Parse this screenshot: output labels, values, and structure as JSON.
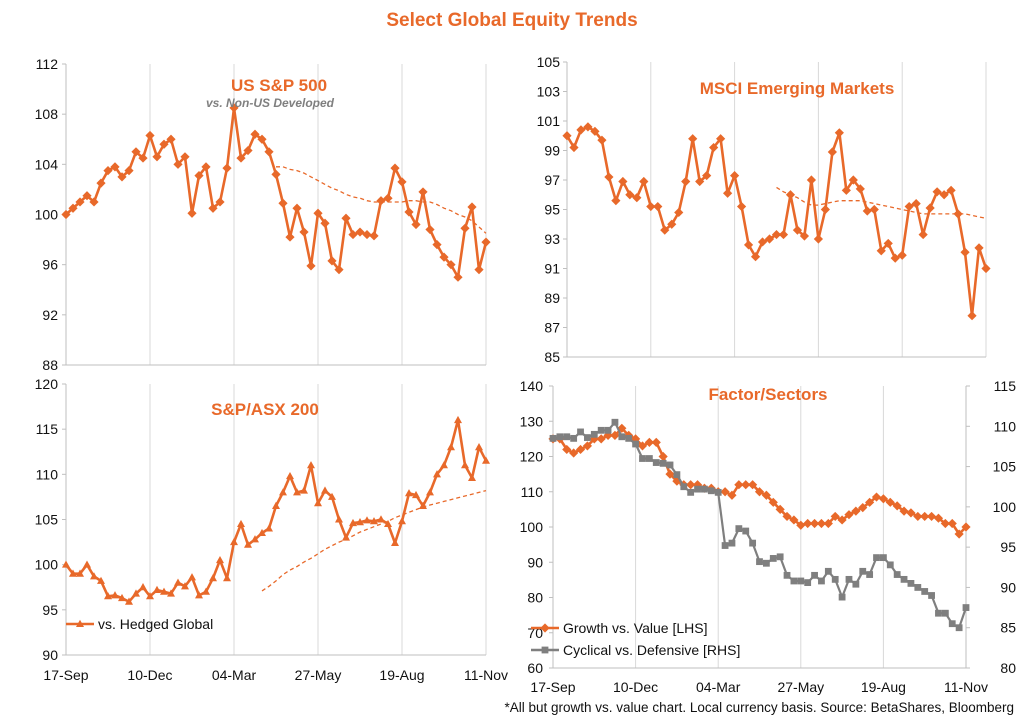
{
  "page": {
    "title": "Select Global Equity Trends",
    "footnote": "*All but growth vs. value chart.  Local currency basis.  Source: BetaShares, Bloomberg"
  },
  "colors": {
    "orange": "#E8692A",
    "gray": "#7F7F7F",
    "text": "#111111",
    "grid": "#d9d9d9"
  },
  "chart_data": [
    {
      "id": "us-sp500",
      "type": "line",
      "title": "US S&P 500",
      "subtitle": "vs. Non-US Developed",
      "x_tick_labels": [],
      "y_tick_labels": [
        "112",
        "108",
        "104",
        "100",
        "96",
        "92",
        "88"
      ],
      "ylim": [
        88,
        112
      ],
      "grid": "vertical",
      "series": [
        {
          "name": "",
          "marker": "diamond",
          "style": "solid",
          "values": [
            100,
            100.5,
            101,
            101.5,
            101,
            102.5,
            103.5,
            103.8,
            103,
            103.5,
            105,
            104.5,
            106.3,
            104.6,
            105.6,
            106,
            104,
            104.6,
            100.1,
            103.1,
            103.8,
            100.5,
            101,
            103.7,
            108.5,
            104.5,
            105.1,
            106.4,
            106,
            105,
            103.2,
            100.9,
            98.2,
            100.5,
            98.6,
            95.9,
            100.1,
            99.3,
            96.3,
            95.6,
            99.7,
            98.4,
            98.6,
            98.4,
            98.3,
            101.1,
            101.3,
            103.7,
            102.6,
            100.2,
            99.2,
            101.8,
            98.8,
            97.6,
            96.6,
            96,
            95,
            98.9,
            100.6,
            95.6,
            97.8
          ]
        },
        {
          "name": "",
          "marker": "none",
          "style": "dashed",
          "values": [
            null,
            null,
            null,
            null,
            null,
            null,
            null,
            null,
            null,
            null,
            null,
            null,
            null,
            null,
            null,
            null,
            null,
            null,
            null,
            null,
            null,
            null,
            null,
            null,
            null,
            null,
            null,
            null,
            null,
            null,
            103.8,
            103.8,
            103.6,
            103.5,
            103.3,
            103,
            102.7,
            102.4,
            102.1,
            101.9,
            101.6,
            101.4,
            101.3,
            101.1,
            101,
            101,
            101,
            101,
            101,
            101.1,
            101.1,
            101,
            101,
            100.8,
            100.5,
            100.3,
            100,
            99.8,
            99.5,
            99,
            98.5
          ]
        }
      ]
    },
    {
      "id": "msci-em",
      "type": "line",
      "title": "MSCI Emerging Markets",
      "x_tick_labels": [],
      "y_tick_labels": [
        "105",
        "103",
        "101",
        "99",
        "97",
        "95",
        "93",
        "91",
        "89",
        "87",
        "85"
      ],
      "ylim": [
        85,
        105
      ],
      "grid": "vertical",
      "series": [
        {
          "name": "",
          "marker": "diamond",
          "style": "solid",
          "values": [
            100,
            99.2,
            100.4,
            100.6,
            100.3,
            99.7,
            97.2,
            95.6,
            96.9,
            96,
            95.8,
            96.9,
            95.2,
            95.2,
            93.6,
            94,
            94.8,
            96.9,
            99.8,
            96.9,
            97.3,
            99.2,
            99.8,
            96.1,
            97.3,
            95.2,
            92.6,
            91.8,
            92.8,
            93,
            93.3,
            93.3,
            96,
            93.6,
            93.2,
            97,
            93,
            95,
            98.9,
            100.2,
            96.3,
            97,
            96.4,
            94.9,
            95,
            92.2,
            92.7,
            91.7,
            91.9,
            95.2,
            95.4,
            93.3,
            95.1,
            96.2,
            96,
            96.3,
            94.7,
            92.1,
            87.8,
            92.4,
            91
          ]
        },
        {
          "name": "",
          "marker": "none",
          "style": "dashed",
          "values": [
            null,
            null,
            null,
            null,
            null,
            null,
            null,
            null,
            null,
            null,
            null,
            null,
            null,
            null,
            null,
            null,
            null,
            null,
            null,
            null,
            null,
            null,
            null,
            null,
            null,
            null,
            null,
            null,
            null,
            null,
            96.5,
            96.2,
            96,
            95.8,
            95.5,
            95.3,
            95.3,
            95.4,
            95.5,
            95.6,
            95.6,
            95.6,
            95.6,
            95.5,
            95.4,
            95.3,
            95.2,
            95.1,
            95,
            94.9,
            94.8,
            94.7,
            94.7,
            94.7,
            94.7,
            94.7,
            94.7,
            94.7,
            94.6,
            94.5,
            94.4
          ]
        }
      ]
    },
    {
      "id": "sp-asx200",
      "type": "line",
      "title": "S&P/ASX 200",
      "x_tick_labels": [
        "17-Sep",
        "10-Dec",
        "04-Mar",
        "27-May",
        "19-Aug",
        "11-Nov"
      ],
      "x_tick_index": [
        0,
        12,
        24,
        36,
        48,
        60
      ],
      "y_tick_labels": [
        "120",
        "115",
        "110",
        "105",
        "100",
        "95",
        "90"
      ],
      "ylim": [
        90,
        120
      ],
      "grid": "vertical",
      "legend": "bottom-left",
      "series": [
        {
          "name": "vs. Hedged Global",
          "marker": "triangle",
          "style": "solid",
          "values": [
            100,
            99,
            99,
            100,
            98.7,
            98.2,
            96.5,
            96.6,
            96.3,
            95.9,
            96.8,
            97.5,
            96.5,
            97.2,
            97,
            96.8,
            98,
            97.6,
            98.6,
            96.6,
            97,
            98.5,
            100.5,
            98.5,
            102.5,
            104.5,
            102.2,
            102.8,
            103.5,
            104,
            106.5,
            108,
            109.8,
            108,
            108.2,
            111,
            106.8,
            108.2,
            107.5,
            105,
            103,
            104.6,
            104.7,
            104.9,
            104.8,
            105,
            104.5,
            102.4,
            104.8,
            107.9,
            107.7,
            106.5,
            108,
            110,
            111,
            113,
            116,
            111,
            109.6,
            113,
            111.5
          ]
        },
        {
          "name": "",
          "marker": "none",
          "style": "dashed",
          "values": [
            null,
            null,
            null,
            null,
            null,
            null,
            null,
            null,
            null,
            null,
            null,
            null,
            null,
            null,
            null,
            null,
            null,
            null,
            null,
            null,
            null,
            null,
            null,
            null,
            null,
            null,
            null,
            null,
            97.1,
            97.6,
            98.2,
            98.9,
            99.4,
            99.8,
            100.3,
            100.7,
            101.2,
            101.7,
            102.1,
            102.5,
            102.8,
            103.2,
            103.6,
            103.9,
            104.2,
            104.5,
            104.8,
            105.2,
            105.5,
            105.8,
            106.1,
            106.4,
            106.6,
            106.8,
            107,
            107.2,
            107.4,
            107.6,
            107.8,
            108,
            108.2
          ]
        }
      ]
    },
    {
      "id": "factor-sectors",
      "type": "line",
      "title": "Factor/Sectors",
      "x_tick_labels": [
        "17-Sep",
        "10-Dec",
        "04-Mar",
        "27-May",
        "19-Aug",
        "11-Nov"
      ],
      "x_tick_index": [
        0,
        12,
        24,
        36,
        48,
        60
      ],
      "y_tick_labels": [
        "140",
        "130",
        "120",
        "110",
        "100",
        "90",
        "80",
        "70",
        "60"
      ],
      "y2_tick_labels": [
        "115",
        "110",
        "105",
        "100",
        "95",
        "90",
        "85",
        "80"
      ],
      "ylim": [
        60,
        140
      ],
      "y2lim": [
        80,
        115
      ],
      "grid": "vertical",
      "legend": "bottom-left",
      "series": [
        {
          "name": "Growth vs. Value [LHS]",
          "axis": "left",
          "marker": "diamond",
          "style": "solid",
          "values": [
            125,
            125,
            122,
            121,
            122,
            123,
            125,
            125,
            126,
            126,
            128,
            126,
            125,
            123,
            124,
            124,
            120,
            115,
            113,
            112,
            112,
            112,
            111,
            111,
            110,
            110,
            109,
            112,
            112,
            112,
            110,
            109,
            107,
            105,
            103,
            102,
            100.5,
            101,
            101,
            101,
            101,
            103,
            102,
            103.5,
            104.5,
            105.5,
            107,
            108.5,
            108,
            107,
            106,
            104.5,
            104,
            103,
            103,
            103,
            102.5,
            101,
            101,
            98,
            100
          ]
        },
        {
          "name": "Cyclical vs. Defensive [RHS]",
          "axis": "right",
          "marker": "square",
          "style": "solid",
          "values": [
            108.5,
            108.7,
            108.7,
            108.5,
            109.3,
            108.6,
            109,
            109.5,
            109.5,
            110.5,
            108.7,
            108.5,
            107.8,
            106,
            106,
            105.5,
            105.4,
            105.2,
            104,
            102.5,
            101.8,
            102.2,
            102.2,
            102,
            101.8,
            95.2,
            95.5,
            97.3,
            97,
            95.5,
            93.2,
            93,
            93.6,
            93.8,
            91.5,
            90.8,
            90.8,
            90.6,
            91.5,
            90.8,
            92,
            91,
            88.8,
            91,
            90.4,
            92,
            91.6,
            93.7,
            93.7,
            92.8,
            91.6,
            91,
            90.5,
            90,
            89.5,
            89,
            86.8,
            86.8,
            85.5,
            85,
            87.5
          ]
        }
      ]
    }
  ]
}
